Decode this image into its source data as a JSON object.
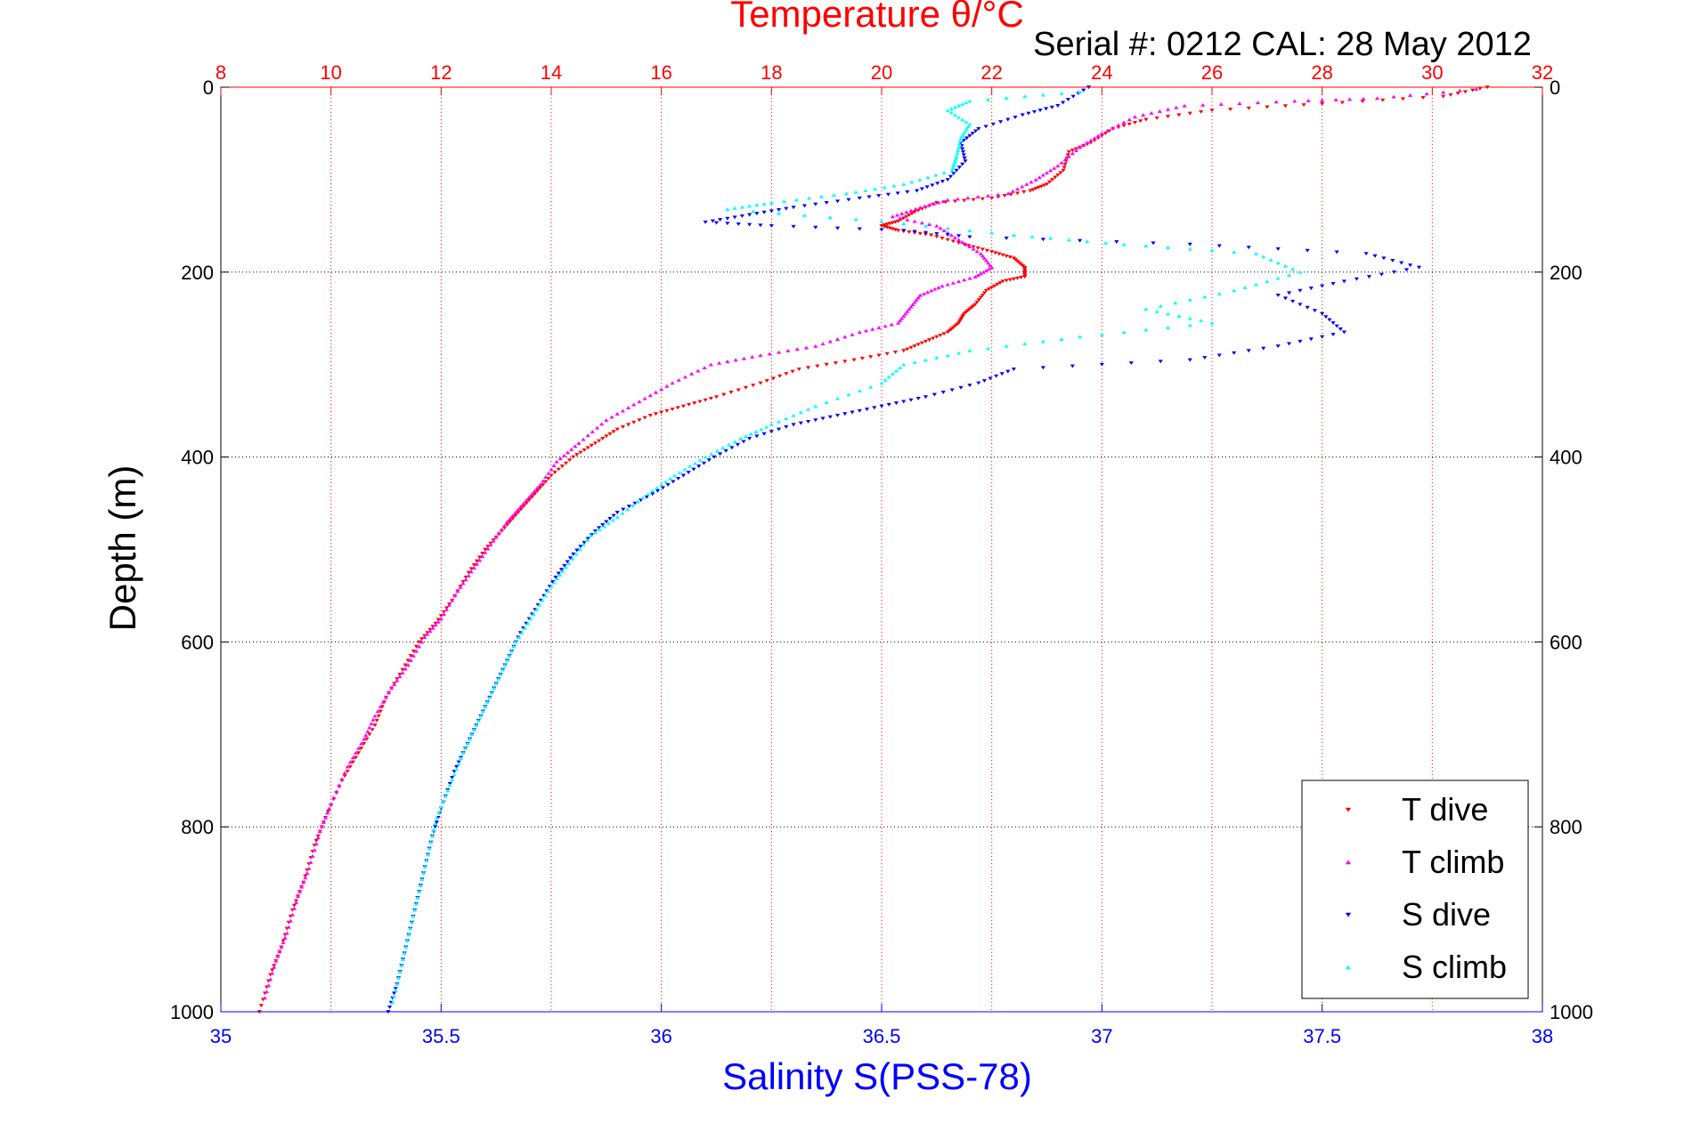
{
  "chart_data": {
    "type": "scatter",
    "title": "Temperature θ/°C",
    "subtitle": "Serial #: 0212  CAL: 28 May 2012",
    "xlabel_top": "Temperature θ/°C",
    "xlabel_bottom": "Salinity S(PSS-78)",
    "ylabel": "Depth (m)",
    "x_top_lim": [
      8,
      32
    ],
    "x_top_ticks": [
      "8",
      "10",
      "12",
      "14",
      "16",
      "18",
      "20",
      "22",
      "24",
      "26",
      "28",
      "30",
      "32"
    ],
    "x_bottom_lim": [
      35,
      38
    ],
    "x_bottom_ticks": [
      "35",
      "35.5",
      "36",
      "36.5",
      "37",
      "37.5",
      "38"
    ],
    "ylim": [
      0,
      1000
    ],
    "y_ticks": [
      "0",
      "200",
      "400",
      "600",
      "800",
      "1000"
    ],
    "y_reversed": true,
    "grid": true,
    "legend_position": "bottom-right",
    "colors": {
      "t_axis": "#ff0000",
      "s_axis": "#0000ff",
      "grid_t": "#ff0000",
      "grid_y": "#000000"
    },
    "series": [
      {
        "name": "T dive",
        "axis": "temperature",
        "marker": "triangle-down",
        "color": "#ff0000",
        "points": [
          [
            31.0,
            0
          ],
          [
            30.2,
            10
          ],
          [
            28.0,
            18
          ],
          [
            26.0,
            25
          ],
          [
            24.8,
            35
          ],
          [
            24.2,
            45
          ],
          [
            23.8,
            60
          ],
          [
            23.4,
            70
          ],
          [
            23.3,
            90
          ],
          [
            23.0,
            105
          ],
          [
            22.7,
            112
          ],
          [
            22.0,
            120
          ],
          [
            21.0,
            125
          ],
          [
            20.6,
            135
          ],
          [
            20.3,
            145
          ],
          [
            20.0,
            150
          ],
          [
            20.3,
            155
          ],
          [
            20.9,
            160
          ],
          [
            21.5,
            170
          ],
          [
            22.0,
            178
          ],
          [
            22.4,
            185
          ],
          [
            22.6,
            195
          ],
          [
            22.6,
            205
          ],
          [
            22.2,
            210
          ],
          [
            21.9,
            220
          ],
          [
            21.7,
            235
          ],
          [
            21.5,
            245
          ],
          [
            21.4,
            255
          ],
          [
            21.2,
            265
          ],
          [
            20.8,
            275
          ],
          [
            20.4,
            285
          ],
          [
            19.5,
            295
          ],
          [
            18.5,
            305
          ],
          [
            17.8,
            320
          ],
          [
            17.0,
            335
          ],
          [
            16.4,
            345
          ],
          [
            15.8,
            355
          ],
          [
            15.2,
            370
          ],
          [
            14.8,
            385
          ],
          [
            14.4,
            400
          ],
          [
            14.0,
            420
          ],
          [
            13.7,
            440
          ],
          [
            13.4,
            460
          ],
          [
            13.1,
            480
          ],
          [
            12.8,
            500
          ],
          [
            12.5,
            525
          ],
          [
            12.2,
            555
          ],
          [
            11.9,
            580
          ],
          [
            11.6,
            600
          ],
          [
            11.3,
            630
          ],
          [
            11.0,
            660
          ],
          [
            10.8,
            690
          ],
          [
            10.5,
            720
          ],
          [
            10.2,
            750
          ],
          [
            9.9,
            790
          ],
          [
            9.7,
            820
          ],
          [
            9.5,
            860
          ],
          [
            9.3,
            890
          ],
          [
            9.1,
            930
          ],
          [
            8.9,
            960
          ],
          [
            8.7,
            1000
          ]
        ]
      },
      {
        "name": "T climb",
        "axis": "temperature",
        "marker": "triangle-up",
        "color": "#ff00ff",
        "points": [
          [
            30.8,
            2
          ],
          [
            29.0,
            12
          ],
          [
            27.5,
            15
          ],
          [
            25.5,
            20
          ],
          [
            24.6,
            32
          ],
          [
            24.0,
            50
          ],
          [
            23.6,
            65
          ],
          [
            23.2,
            85
          ],
          [
            22.8,
            100
          ],
          [
            22.3,
            115
          ],
          [
            21.2,
            122
          ],
          [
            20.7,
            130
          ],
          [
            20.2,
            140
          ],
          [
            21.0,
            150
          ],
          [
            21.4,
            165
          ],
          [
            21.8,
            180
          ],
          [
            22.0,
            195
          ],
          [
            21.7,
            205
          ],
          [
            21.1,
            215
          ],
          [
            20.7,
            225
          ],
          [
            20.5,
            240
          ],
          [
            20.3,
            255
          ],
          [
            19.6,
            265
          ],
          [
            18.8,
            280
          ],
          [
            17.8,
            290
          ],
          [
            16.9,
            300
          ],
          [
            16.2,
            320
          ],
          [
            15.6,
            340
          ],
          [
            15.0,
            360
          ],
          [
            14.5,
            385
          ],
          [
            14.1,
            405
          ],
          [
            13.8,
            430
          ],
          [
            13.5,
            450
          ],
          [
            13.2,
            470
          ],
          [
            12.9,
            495
          ],
          [
            12.6,
            520
          ],
          [
            12.3,
            545
          ],
          [
            12.0,
            575
          ],
          [
            11.7,
            595
          ],
          [
            11.4,
            625
          ],
          [
            11.1,
            650
          ],
          [
            10.8,
            680
          ],
          [
            10.6,
            705
          ],
          [
            10.3,
            735
          ],
          [
            10.0,
            775
          ],
          [
            9.8,
            805
          ],
          [
            9.6,
            845
          ],
          [
            9.4,
            875
          ],
          [
            9.2,
            915
          ],
          [
            9.0,
            945
          ],
          [
            8.8,
            985
          ]
        ]
      },
      {
        "name": "S dive",
        "axis": "salinity",
        "marker": "triangle-down",
        "color": "#0000ff",
        "points": [
          [
            36.97,
            0
          ],
          [
            36.9,
            20
          ],
          [
            36.82,
            30
          ],
          [
            36.72,
            45
          ],
          [
            36.68,
            60
          ],
          [
            36.69,
            80
          ],
          [
            36.65,
            100
          ],
          [
            36.58,
            112
          ],
          [
            36.45,
            120
          ],
          [
            36.3,
            130
          ],
          [
            36.2,
            138
          ],
          [
            36.1,
            146
          ],
          [
            36.25,
            150
          ],
          [
            36.55,
            155
          ],
          [
            36.7,
            162
          ],
          [
            37.2,
            170
          ],
          [
            37.6,
            180
          ],
          [
            37.72,
            195
          ],
          [
            37.55,
            210
          ],
          [
            37.4,
            225
          ],
          [
            37.5,
            245
          ],
          [
            37.55,
            265
          ],
          [
            37.4,
            280
          ],
          [
            37.2,
            295
          ],
          [
            36.8,
            305
          ],
          [
            36.72,
            320
          ],
          [
            36.6,
            335
          ],
          [
            36.5,
            345
          ],
          [
            36.4,
            355
          ],
          [
            36.3,
            365
          ],
          [
            36.2,
            380
          ],
          [
            36.12,
            400
          ],
          [
            36.05,
            420
          ],
          [
            35.98,
            440
          ],
          [
            35.9,
            460
          ],
          [
            35.85,
            480
          ],
          [
            35.8,
            505
          ],
          [
            35.76,
            530
          ],
          [
            35.72,
            560
          ],
          [
            35.68,
            590
          ],
          [
            35.65,
            620
          ],
          [
            35.62,
            650
          ],
          [
            35.59,
            680
          ],
          [
            35.56,
            710
          ],
          [
            35.53,
            740
          ],
          [
            35.5,
            780
          ],
          [
            35.48,
            810
          ],
          [
            35.46,
            850
          ],
          [
            35.44,
            890
          ],
          [
            35.42,
            930
          ],
          [
            35.4,
            970
          ],
          [
            35.38,
            1000
          ]
        ]
      },
      {
        "name": "S climb",
        "axis": "salinity",
        "marker": "triangle-up",
        "color": "#00ffff",
        "points": [
          [
            36.95,
            5
          ],
          [
            36.7,
            15
          ],
          [
            36.65,
            25
          ],
          [
            36.7,
            40
          ],
          [
            36.68,
            55
          ],
          [
            36.67,
            75
          ],
          [
            36.66,
            90
          ],
          [
            36.55,
            105
          ],
          [
            36.42,
            115
          ],
          [
            36.25,
            125
          ],
          [
            36.15,
            132
          ],
          [
            36.5,
            145
          ],
          [
            36.8,
            160
          ],
          [
            37.05,
            170
          ],
          [
            37.35,
            180
          ],
          [
            37.45,
            200
          ],
          [
            37.3,
            220
          ],
          [
            37.1,
            240
          ],
          [
            37.25,
            255
          ],
          [
            36.95,
            270
          ],
          [
            36.7,
            285
          ],
          [
            36.55,
            300
          ],
          [
            36.5,
            320
          ],
          [
            36.35,
            345
          ],
          [
            36.25,
            365
          ],
          [
            36.18,
            380
          ],
          [
            36.1,
            400
          ],
          [
            36.03,
            420
          ],
          [
            35.97,
            440
          ],
          [
            35.9,
            465
          ],
          [
            35.84,
            485
          ],
          [
            35.79,
            515
          ],
          [
            35.75,
            540
          ],
          [
            35.71,
            570
          ],
          [
            35.67,
            600
          ],
          [
            35.64,
            630
          ],
          [
            35.61,
            660
          ],
          [
            35.58,
            690
          ],
          [
            35.55,
            720
          ],
          [
            35.52,
            755
          ],
          [
            35.49,
            790
          ],
          [
            35.47,
            830
          ],
          [
            35.45,
            870
          ],
          [
            35.43,
            910
          ],
          [
            35.41,
            950
          ],
          [
            35.39,
            990
          ]
        ]
      }
    ]
  }
}
